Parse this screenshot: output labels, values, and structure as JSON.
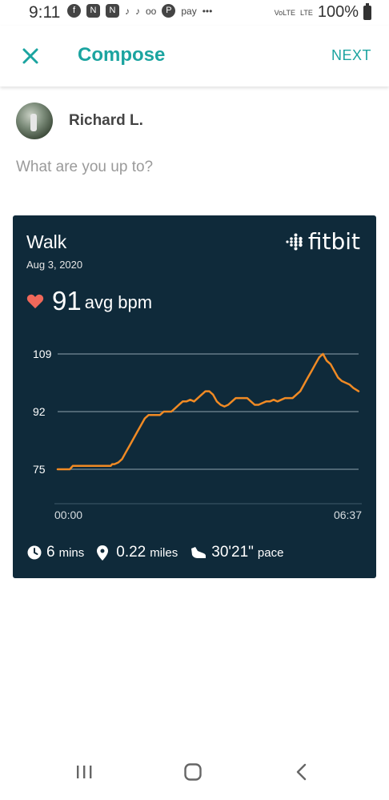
{
  "status_bar": {
    "time": "9:11",
    "battery": "100%",
    "lte": "LTE",
    "volte": "VoLTE",
    "pay_label": "pay"
  },
  "app_bar": {
    "title": "Compose",
    "next_label": "NEXT"
  },
  "composer": {
    "user_name": "Richard L.",
    "placeholder": "What are you up to?"
  },
  "card": {
    "activity": "Walk",
    "date": "Aug 3, 2020",
    "brand": "fitbit",
    "avg_bpm": "91",
    "avg_bpm_unit": "avg bpm",
    "stats": {
      "duration_value": "6",
      "duration_unit": "mins",
      "distance_value": "0.22",
      "distance_unit": "miles",
      "pace_value": "30'21\"",
      "pace_unit": "pace"
    },
    "colors": {
      "background": "#0f2a3a",
      "line": "#f08a24",
      "heart": "#f0685a"
    }
  },
  "chart_data": {
    "type": "line",
    "title": "",
    "xlabel": "",
    "ylabel": "",
    "y_ticks": [
      "109",
      "92",
      "75"
    ],
    "x_ticks": [
      "00:00",
      "06:37"
    ],
    "ylim": [
      75,
      109
    ],
    "xlim": [
      0,
      397
    ],
    "x_unit": "seconds",
    "series": [
      {
        "x": [
          0,
          5,
          8,
          12,
          16,
          20,
          24,
          30,
          40,
          60,
          70,
          72,
          75,
          80,
          85,
          90,
          95,
          100,
          105,
          110,
          115,
          120,
          125,
          130,
          135,
          140,
          145,
          150,
          155,
          160,
          165,
          170,
          175,
          180,
          185,
          190,
          195,
          200,
          205,
          210,
          215,
          220,
          225,
          230,
          235,
          240,
          245,
          250,
          255,
          260,
          265,
          270,
          275,
          280,
          285,
          290,
          295,
          300,
          305,
          310,
          315,
          320,
          325,
          330,
          335,
          340,
          345,
          350,
          355,
          360,
          365,
          370,
          375,
          380,
          385,
          390,
          397
        ],
        "y": [
          75,
          75,
          75,
          75,
          75,
          76,
          76,
          76,
          76,
          76,
          76,
          76.5,
          76.5,
          77,
          78,
          80,
          82,
          84,
          86,
          88,
          90,
          91,
          91,
          91,
          91,
          92,
          92,
          92,
          93,
          94,
          95,
          95,
          95.5,
          95,
          96,
          97,
          98,
          98,
          97,
          95,
          94,
          93.5,
          94,
          95,
          96,
          96,
          96,
          96,
          95,
          94,
          94,
          94.5,
          95,
          95,
          95.5,
          95,
          95.5,
          96,
          96,
          96,
          97,
          98,
          100,
          102,
          104,
          106,
          108,
          109,
          107,
          106,
          104,
          102,
          101,
          100.5,
          100,
          99,
          98
        ]
      }
    ],
    "grid": true
  },
  "nav_bar": {
    "recents": "recents-icon",
    "home": "home-icon",
    "back": "back-icon"
  }
}
